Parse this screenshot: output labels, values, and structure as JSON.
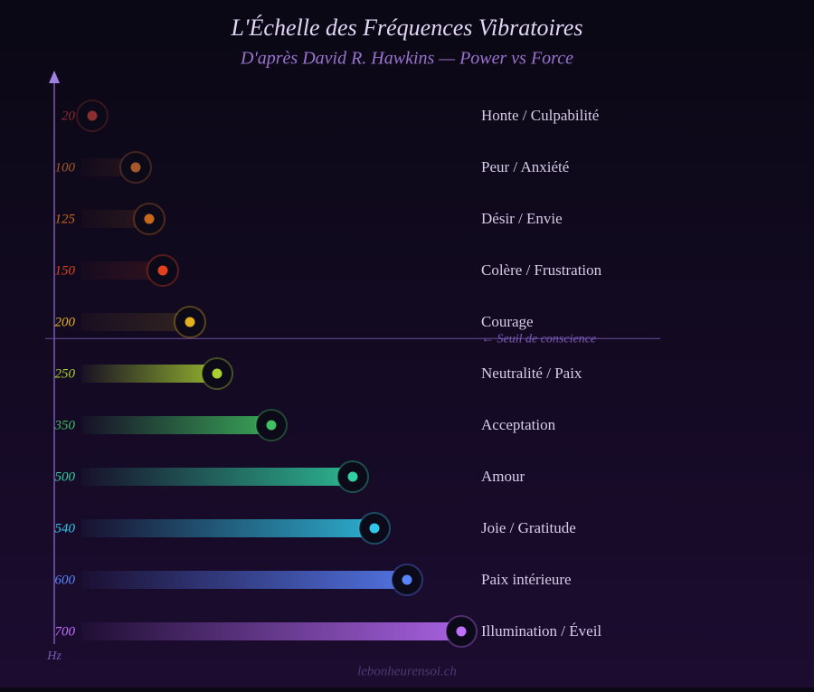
{
  "chart_data": {
    "type": "bar",
    "orientation": "horizontal",
    "title": "L'Échelle des Fréquences Vibratoires",
    "subtitle": "D'après David R. Hawkins — Power vs Force",
    "axis_label": "Hz",
    "source": "lebonheurensoi.ch",
    "categories": [
      "Honte / Culpabilité",
      "Peur / Anxiété",
      "Désir / Envie",
      "Colère / Frustration",
      "Courage",
      "Neutralité / Paix",
      "Acceptation",
      "Amour",
      "Joie / Gratitude",
      "Paix intérieure",
      "Illumination / Éveil"
    ],
    "values": [
      20,
      100,
      125,
      150,
      200,
      250,
      350,
      500,
      540,
      600,
      700
    ],
    "colors": [
      "#8b2e2e",
      "#a6582c",
      "#c8681c",
      "#e0401e",
      "#e0b020",
      "#a8d030",
      "#40c060",
      "#30d0a0",
      "#30c8e8",
      "#5a84ff",
      "#c070ff"
    ],
    "xlim": [
      0,
      700
    ],
    "threshold": {
      "value": 200,
      "label": "← Seuil de conscience"
    }
  }
}
